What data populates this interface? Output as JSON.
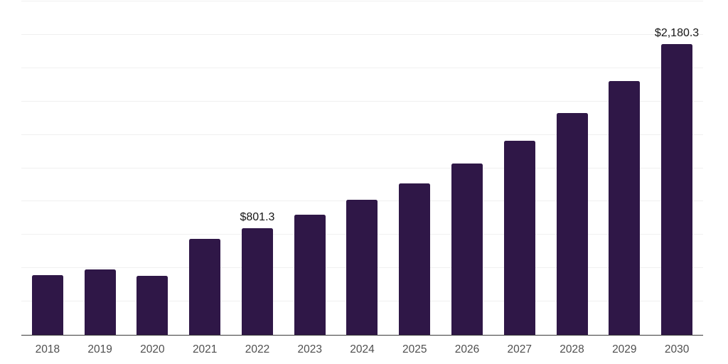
{
  "chart_data": {
    "type": "bar",
    "title": "",
    "xlabel": "",
    "ylabel": "",
    "categories": [
      "2018",
      "2019",
      "2020",
      "2021",
      "2022",
      "2023",
      "2024",
      "2025",
      "2026",
      "2027",
      "2028",
      "2029",
      "2030"
    ],
    "values": [
      447,
      489,
      442,
      718,
      801.3,
      899,
      1011,
      1133,
      1287,
      1457,
      1665,
      1904,
      2180.3
    ],
    "value_labels": [
      "",
      "",
      "",
      "",
      "$801.3",
      "",
      "",
      "",
      "",
      "",
      "",
      "",
      "$2,180.3"
    ],
    "ylim": [
      0,
      2500
    ],
    "gridline_interval": 250,
    "grid": "horizontal",
    "legend_position": "none",
    "y_axis_tick_labels_visible": false
  },
  "colors": {
    "background": "#ffffff",
    "bar": "#2f1747",
    "gridline": "#f0f0f0",
    "axis_line": "#3b3b3b",
    "tick_label": "#4f4f4f",
    "data_label": "#161616"
  }
}
